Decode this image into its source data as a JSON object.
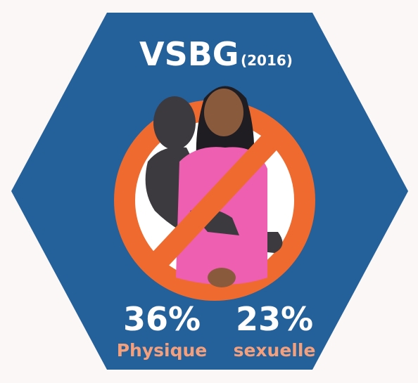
{
  "header": {
    "title": "VSBG",
    "year": "(2016)"
  },
  "stats": [
    {
      "figure": "36%",
      "label": "Physique"
    },
    {
      "figure": "23%",
      "label": "sexuelle"
    }
  ]
}
